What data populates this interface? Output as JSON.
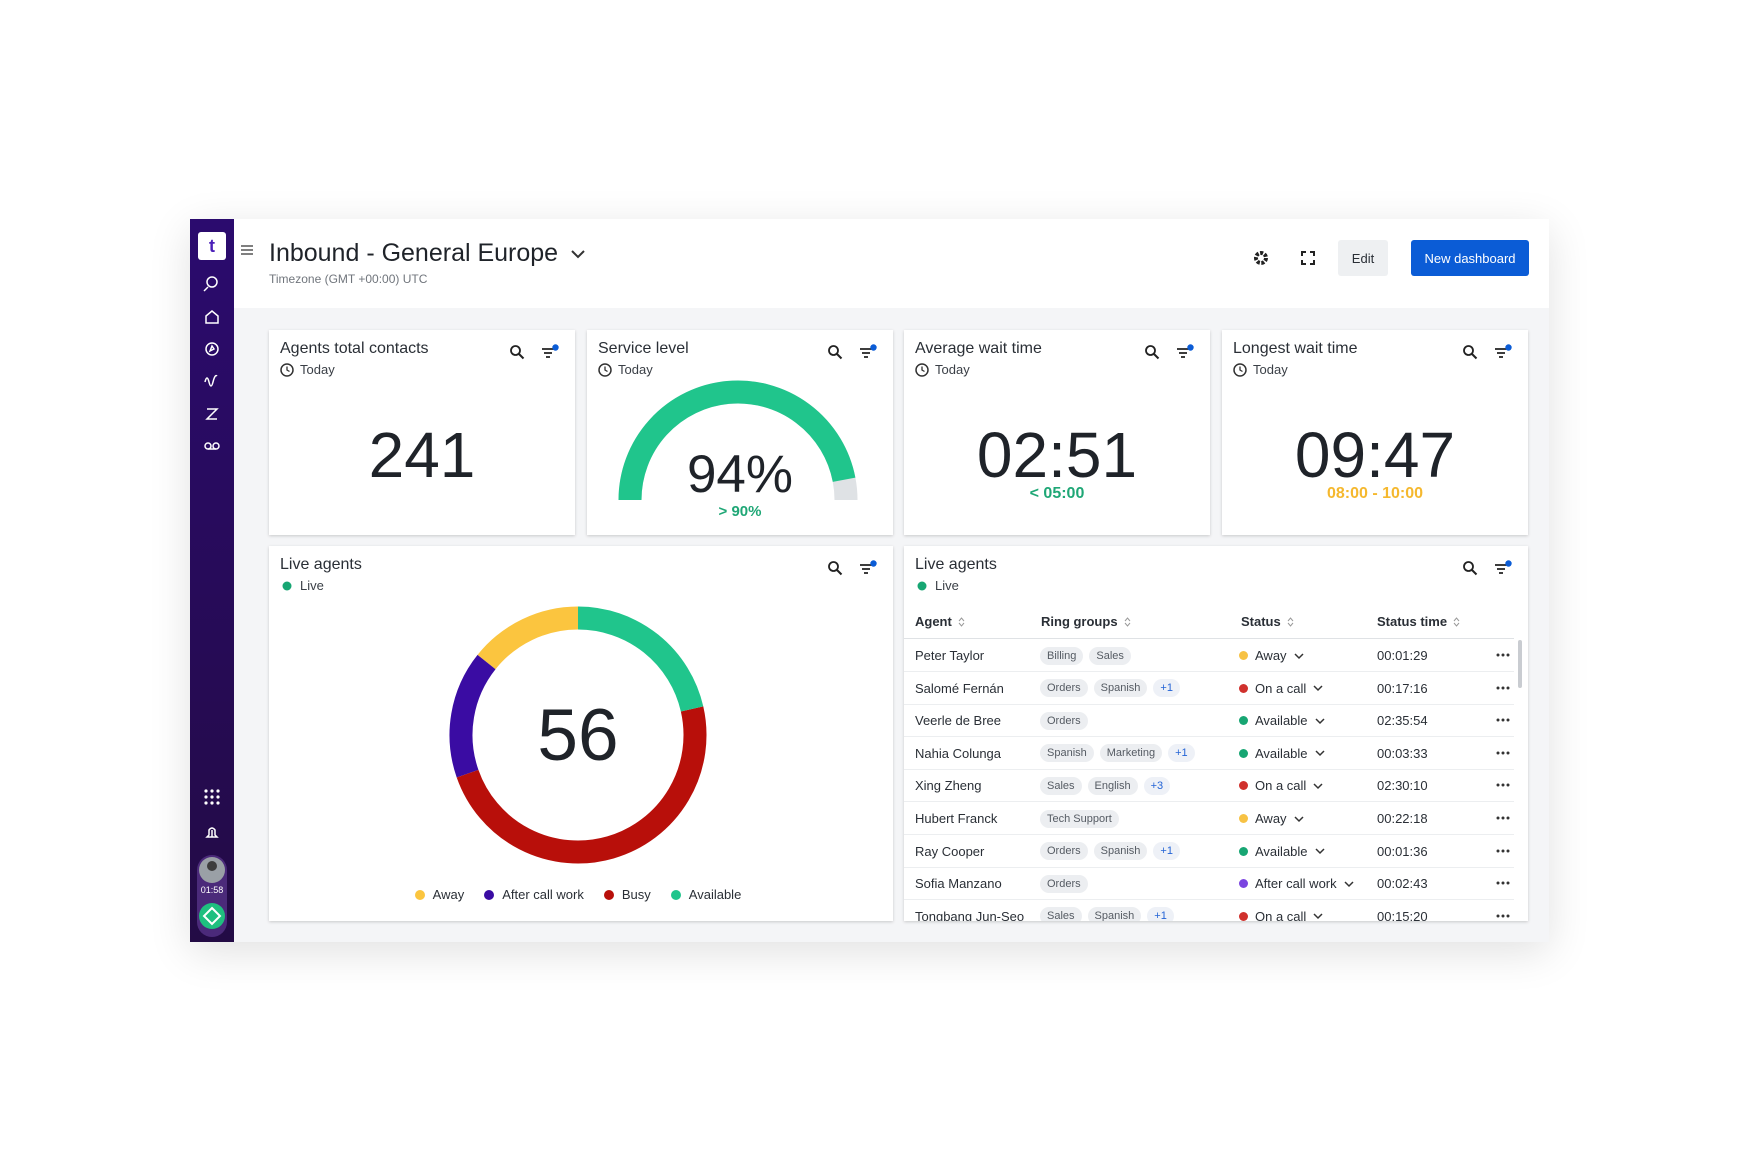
{
  "app": {
    "timer": "01:58"
  },
  "header": {
    "title": "Inbound - General Europe",
    "subtitle": "Timezone (GMT +00:00) UTC",
    "edit": "Edit",
    "new_dashboard": "New dashboard"
  },
  "metrics": [
    {
      "title": "Agents total contacts",
      "period": "Today",
      "value": "241"
    },
    {
      "title": "Service level",
      "period": "Today",
      "value": 94,
      "value_label": "94%",
      "target": "> 90%",
      "color": "#20c58c",
      "target_color": "#1fa776"
    },
    {
      "title": "Average wait time",
      "period": "Today",
      "value": "02:51",
      "target": "< 05:00",
      "target_color": "#1fa776"
    },
    {
      "title": "Longest wait time",
      "period": "Today",
      "value": "09:47",
      "target": "08:00 - 10:00",
      "target_color": "#f5b82e"
    }
  ],
  "chart_data": {
    "type": "donut",
    "title": "Live agents",
    "subtitle": "Live",
    "total": 56,
    "categories": [
      "Away",
      "After call work",
      "Busy",
      "Available"
    ],
    "values": [
      8,
      9,
      27,
      12
    ],
    "colors": [
      "#fbc53f",
      "#3a0ca3",
      "#b80f0a",
      "#20c58c"
    ]
  },
  "table": {
    "title": "Live agents",
    "subtitle": "Live",
    "columns": [
      "Agent",
      "Ring groups",
      "Status",
      "Status time"
    ],
    "rows": [
      {
        "agent": "Peter Taylor",
        "groups": [
          "Billing",
          "Sales"
        ],
        "status": "Away",
        "status_color": "#f7c244",
        "time": "00:01:29"
      },
      {
        "agent": "Salomé Fernán",
        "groups": [
          "Orders",
          "Spanish"
        ],
        "more": "+1",
        "status": "On a call",
        "status_color": "#d0312d",
        "time": "00:17:16"
      },
      {
        "agent": "Veerle de Bree",
        "groups": [
          "Orders"
        ],
        "status": "Available",
        "status_color": "#17a673",
        "time": "02:35:54"
      },
      {
        "agent": "Nahia Colunga",
        "groups": [
          "Spanish",
          "Marketing"
        ],
        "more": "+1",
        "status": "Available",
        "status_color": "#17a673",
        "time": "00:03:33"
      },
      {
        "agent": "Xing Zheng",
        "groups": [
          "Sales",
          "English"
        ],
        "more": "+3",
        "status": "On a call",
        "status_color": "#d0312d",
        "time": "02:30:10"
      },
      {
        "agent": "Hubert Franck",
        "groups": [
          "Tech Support"
        ],
        "status": "Away",
        "status_color": "#f7c244",
        "time": "00:22:18"
      },
      {
        "agent": "Ray Cooper",
        "groups": [
          "Orders",
          "Spanish"
        ],
        "more": "+1",
        "status": "Available",
        "status_color": "#17a673",
        "time": "00:01:36"
      },
      {
        "agent": "Sofia Manzano",
        "groups": [
          "Orders"
        ],
        "status": "After call work",
        "status_color": "#7b45e0",
        "time": "00:02:43"
      },
      {
        "agent": "Tongbang Jun-Seo",
        "groups": [
          "Sales",
          "Spanish"
        ],
        "more": "+1",
        "status": "On a call",
        "status_color": "#d0312d",
        "time": "00:15:20"
      }
    ]
  }
}
